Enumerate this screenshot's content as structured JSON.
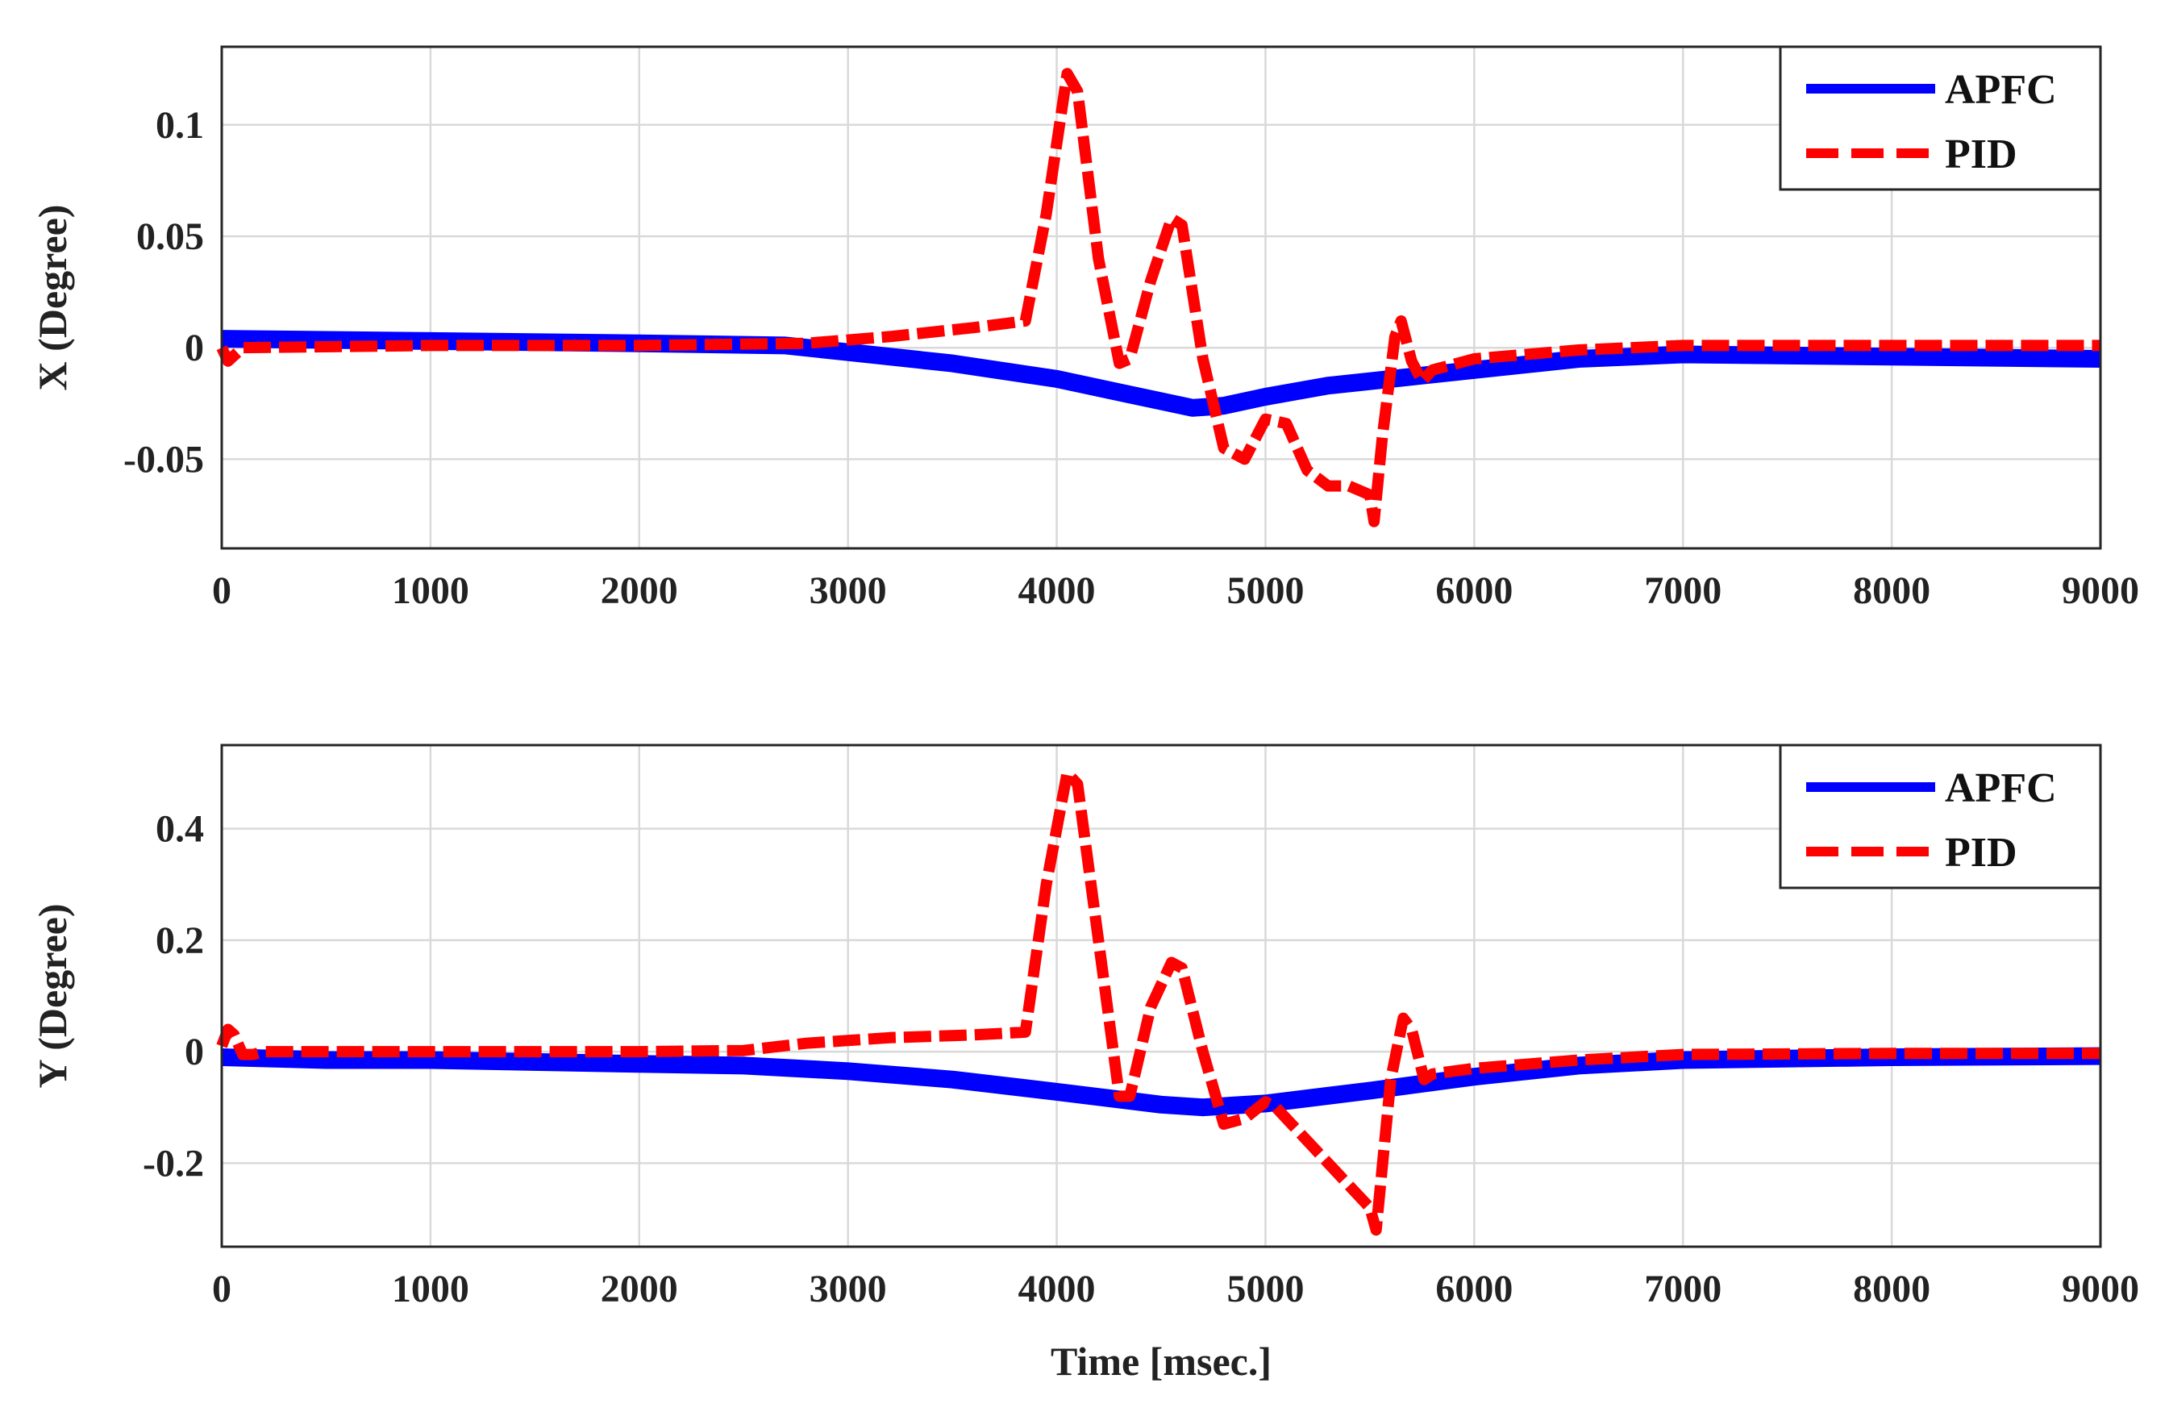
{
  "chart_data": [
    {
      "type": "line",
      "ylabel": "X (Degree)",
      "xlabel": "",
      "xlim": [
        0,
        9000
      ],
      "ylim": [
        -0.09,
        0.135
      ],
      "xticks": [
        "0",
        "1000",
        "2000",
        "3000",
        "4000",
        "5000",
        "6000",
        "7000",
        "8000",
        "9000"
      ],
      "yticks": [
        "-0.05",
        "0",
        "0.05",
        "0.1"
      ],
      "grid": true,
      "legend_position": "top-right",
      "series": [
        {
          "name": "APFC",
          "color": "#0000ff",
          "style": "solid",
          "x": [
            0,
            1000,
            2000,
            2700,
            3000,
            3500,
            4000,
            4300,
            4500,
            4650,
            4800,
            5000,
            5300,
            5600,
            6000,
            6500,
            7000,
            8000,
            9000
          ],
          "y": [
            0.004,
            0.003,
            0.002,
            0.001,
            -0.002,
            -0.007,
            -0.014,
            -0.02,
            -0.024,
            -0.027,
            -0.026,
            -0.022,
            -0.017,
            -0.014,
            -0.01,
            -0.005,
            -0.003,
            -0.004,
            -0.005
          ]
        },
        {
          "name": "PID",
          "color": "#ff0000",
          "style": "dashed",
          "x": [
            0,
            30,
            100,
            1000,
            2000,
            2800,
            3200,
            3600,
            3850,
            3950,
            4050,
            4100,
            4200,
            4300,
            4350,
            4450,
            4550,
            4600,
            4700,
            4800,
            4900,
            5000,
            5100,
            5200,
            5300,
            5400,
            5500,
            5520,
            5560,
            5620,
            5650,
            5700,
            5750,
            5800,
            6000,
            6500,
            7000,
            8000,
            9000
          ],
          "y": [
            0,
            -0.006,
            0,
            0.001,
            0.001,
            0.002,
            0.005,
            0.009,
            0.012,
            0.06,
            0.123,
            0.115,
            0.04,
            -0.007,
            -0.005,
            0.03,
            0.058,
            0.055,
            -0.005,
            -0.045,
            -0.05,
            -0.032,
            -0.034,
            -0.055,
            -0.062,
            -0.062,
            -0.066,
            -0.078,
            -0.04,
            0.005,
            0.012,
            -0.006,
            -0.015,
            -0.01,
            -0.005,
            -0.001,
            0.001,
            0.001,
            0.001
          ]
        }
      ]
    },
    {
      "type": "line",
      "ylabel": "Y (Degree)",
      "xlabel": "Time [msec.]",
      "xlim": [
        0,
        9000
      ],
      "ylim": [
        -0.35,
        0.55
      ],
      "xticks": [
        "0",
        "1000",
        "2000",
        "3000",
        "4000",
        "5000",
        "6000",
        "7000",
        "8000",
        "9000"
      ],
      "yticks": [
        "-0.2",
        "0",
        "0.2",
        "0.4"
      ],
      "grid": true,
      "legend_position": "top-right",
      "series": [
        {
          "name": "APFC",
          "color": "#0000ff",
          "style": "solid",
          "x": [
            0,
            500,
            1000,
            2000,
            2500,
            3000,
            3500,
            4000,
            4500,
            4700,
            5000,
            5500,
            6000,
            6500,
            7000,
            8000,
            9000
          ],
          "y": [
            -0.01,
            -0.015,
            -0.015,
            -0.022,
            -0.025,
            -0.035,
            -0.05,
            -0.072,
            -0.095,
            -0.1,
            -0.093,
            -0.07,
            -0.045,
            -0.025,
            -0.015,
            -0.01,
            -0.008
          ]
        },
        {
          "name": "PID",
          "color": "#ff0000",
          "style": "dashed",
          "x": [
            0,
            30,
            60,
            100,
            150,
            200,
            1000,
            1700,
            2000,
            2500,
            2800,
            3200,
            3600,
            3850,
            3950,
            4050,
            4100,
            4200,
            4300,
            4350,
            4450,
            4550,
            4600,
            4700,
            4800,
            4900,
            5000,
            5050,
            5150,
            5300,
            5400,
            5500,
            5530,
            5600,
            5660,
            5700,
            5760,
            5800,
            6000,
            6500,
            7000,
            8000,
            9000
          ],
          "y": [
            0.01,
            0.04,
            0.03,
            -0.005,
            -0.005,
            0,
            0,
            0,
            0,
            0.002,
            0.015,
            0.025,
            0.03,
            0.035,
            0.3,
            0.5,
            0.48,
            0.2,
            -0.08,
            -0.08,
            0.08,
            0.16,
            0.15,
            0.0,
            -0.13,
            -0.12,
            -0.09,
            -0.1,
            -0.14,
            -0.2,
            -0.24,
            -0.28,
            -0.32,
            -0.05,
            0.06,
            0.04,
            -0.05,
            -0.04,
            -0.03,
            -0.015,
            -0.005,
            -0.003,
            -0.003
          ]
        }
      ]
    }
  ]
}
